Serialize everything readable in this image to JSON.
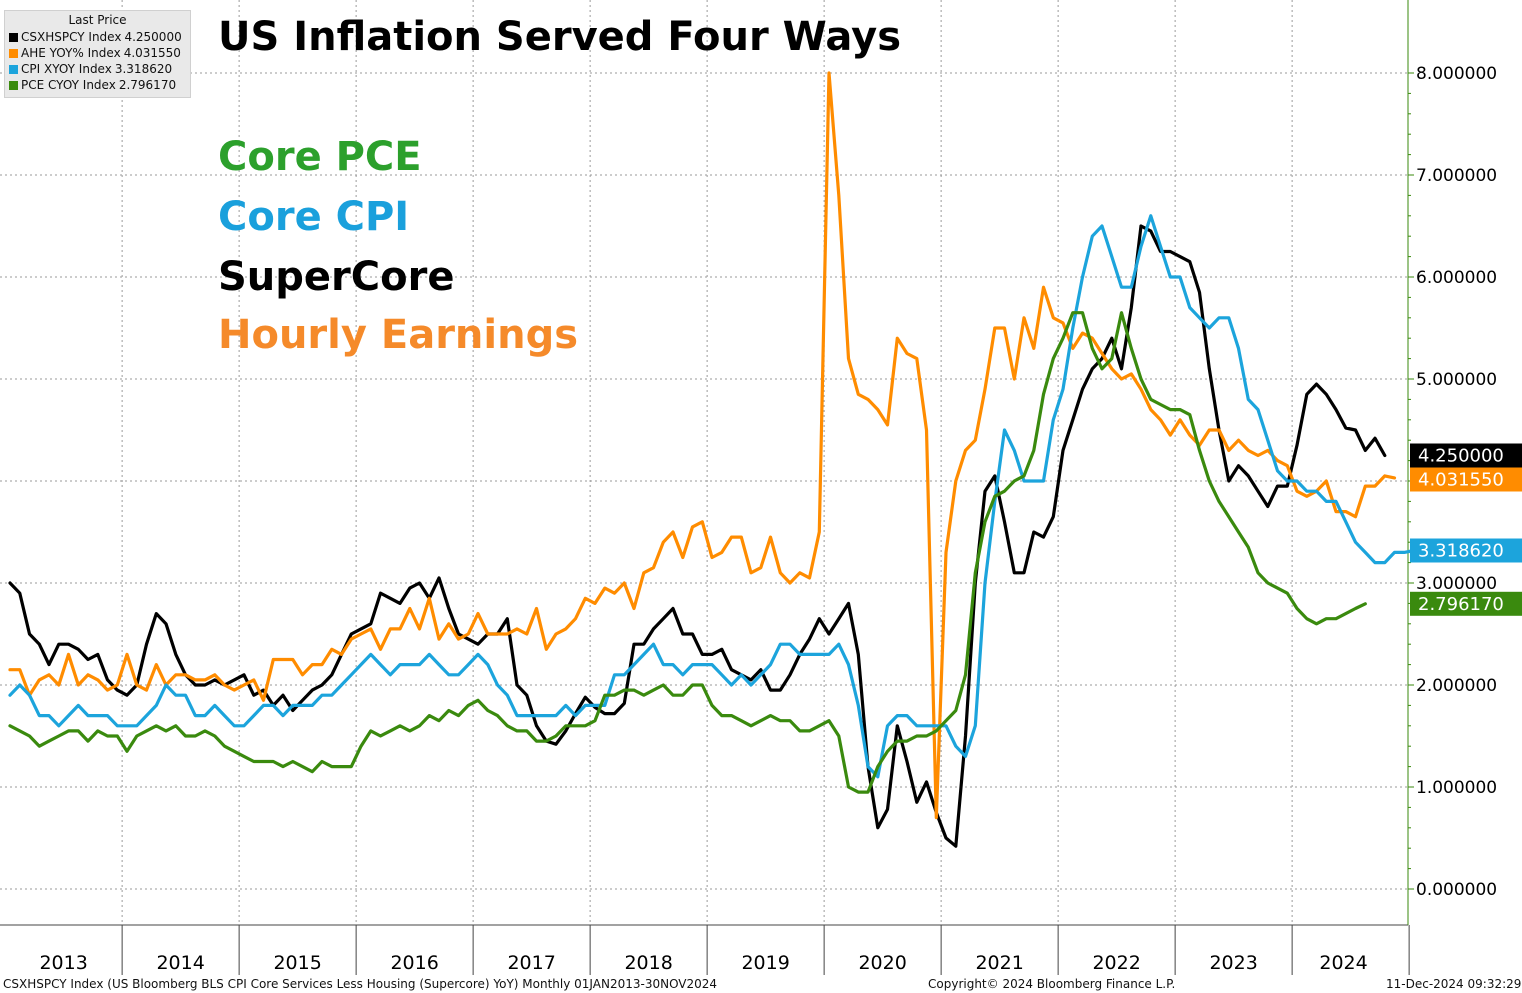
{
  "title": "US Inflation Served Four Ways",
  "annotations": [
    {
      "text": "Core PCE",
      "color": "#2ca02c"
    },
    {
      "text": "Core CPI",
      "color": "#1aa0dc"
    },
    {
      "text": "SuperCore",
      "color": "#000000"
    },
    {
      "text": "Hourly Earnings",
      "color": "#f58a2a"
    }
  ],
  "legend": {
    "header": "Last Price",
    "items": [
      {
        "name": "CSXHSPCY Index",
        "value": "4.250000",
        "color": "#000000"
      },
      {
        "name": "AHE YOY% Index",
        "value": "4.031550",
        "color": "#ff8c00"
      },
      {
        "name": "CPI XYOY Index",
        "value": "3.318620",
        "color": "#1ca4dc"
      },
      {
        "name": "PCE CYOY Index",
        "value": "2.796170",
        "color": "#3a8a0e"
      }
    ]
  },
  "footer": {
    "left": "CSXHSPCY Index (US Bloomberg BLS CPI Core Services Less Housing (Supercore) YoY)  Monthly 01JAN2013-30NOV2024",
    "center": "Copyright© 2024 Bloomberg Finance L.P.",
    "right": "11-Dec-2024 09:32:29"
  },
  "chart_data": {
    "type": "line",
    "x_start": "2013-01",
    "x_end": "2024-11",
    "ylim": [
      -0.1,
      8.7
    ],
    "y_ticks": [
      "0.000000",
      "1.000000",
      "2.000000",
      "3.000000",
      "4.000000",
      "5.000000",
      "6.000000",
      "7.000000",
      "8.000000"
    ],
    "x_tick_labels": [
      "2013",
      "2014",
      "2015",
      "2016",
      "2017",
      "2018",
      "2019",
      "2020",
      "2021",
      "2022",
      "2023",
      "2024"
    ],
    "grid": true,
    "legend_position": "top-left",
    "series": [
      {
        "name": "CSXHSPCY Index",
        "color": "#000000",
        "last_label": "4.250000",
        "values": [
          3.0,
          2.9,
          2.5,
          2.4,
          2.2,
          2.4,
          2.4,
          2.35,
          2.25,
          2.3,
          2.05,
          1.95,
          1.9,
          2.0,
          2.4,
          2.7,
          2.6,
          2.3,
          2.1,
          2.0,
          2.0,
          2.05,
          2.0,
          2.05,
          2.1,
          1.9,
          1.95,
          1.8,
          1.9,
          1.75,
          1.85,
          1.95,
          2.0,
          2.1,
          2.3,
          2.5,
          2.55,
          2.6,
          2.9,
          2.85,
          2.8,
          2.95,
          3.0,
          2.85,
          3.05,
          2.75,
          2.5,
          2.45,
          2.4,
          2.5,
          2.5,
          2.65,
          2.0,
          1.9,
          1.6,
          1.45,
          1.42,
          1.55,
          1.72,
          1.88,
          1.78,
          1.72,
          1.72,
          1.82,
          2.4,
          2.4,
          2.55,
          2.65,
          2.75,
          2.5,
          2.5,
          2.3,
          2.3,
          2.35,
          2.15,
          2.1,
          2.05,
          2.15,
          1.95,
          1.95,
          2.1,
          2.3,
          2.45,
          2.65,
          2.5,
          2.65,
          2.8,
          2.3,
          1.2,
          0.6,
          0.78,
          1.6,
          1.25,
          0.85,
          1.05,
          0.75,
          0.5,
          0.42,
          1.5,
          3.0,
          3.9,
          4.05,
          3.6,
          3.1,
          3.1,
          3.5,
          3.45,
          3.65,
          4.3,
          4.6,
          4.9,
          5.1,
          5.2,
          5.4,
          5.1,
          5.7,
          6.5,
          6.45,
          6.25,
          6.25,
          6.2,
          6.15,
          5.85,
          5.1,
          4.5,
          4.0,
          4.15,
          4.05,
          3.9,
          3.75,
          3.95,
          3.95,
          4.35,
          4.85,
          4.95,
          4.85,
          4.7,
          4.52,
          4.5,
          4.3,
          4.42,
          4.25
        ]
      },
      {
        "name": "AHE YOY% Index",
        "color": "#ff8c00",
        "last_label": "4.031550",
        "values": [
          2.15,
          2.15,
          1.9,
          2.05,
          2.1,
          2.0,
          2.3,
          2.0,
          2.1,
          2.05,
          1.95,
          2.0,
          2.3,
          2.0,
          1.95,
          2.2,
          2.0,
          2.1,
          2.1,
          2.05,
          2.05,
          2.1,
          2.0,
          1.95,
          2.0,
          2.05,
          1.85,
          2.25,
          2.25,
          2.25,
          2.1,
          2.2,
          2.2,
          2.35,
          2.3,
          2.45,
          2.5,
          2.55,
          2.35,
          2.55,
          2.55,
          2.75,
          2.55,
          2.85,
          2.45,
          2.6,
          2.45,
          2.5,
          2.7,
          2.5,
          2.5,
          2.5,
          2.55,
          2.5,
          2.75,
          2.35,
          2.5,
          2.55,
          2.65,
          2.85,
          2.8,
          2.95,
          2.9,
          3.0,
          2.75,
          3.1,
          3.15,
          3.4,
          3.5,
          3.25,
          3.55,
          3.6,
          3.25,
          3.3,
          3.45,
          3.45,
          3.1,
          3.15,
          3.45,
          3.1,
          3.0,
          3.1,
          3.05,
          3.5,
          8.0,
          6.8,
          5.2,
          4.85,
          4.8,
          4.7,
          4.55,
          5.4,
          5.25,
          5.2,
          4.5,
          0.7,
          3.3,
          4.0,
          4.3,
          4.4,
          4.9,
          5.5,
          5.5,
          5.0,
          5.6,
          5.3,
          5.9,
          5.6,
          5.55,
          5.3,
          5.45,
          5.4,
          5.25,
          5.1,
          5.0,
          5.05,
          4.9,
          4.7,
          4.6,
          4.45,
          4.6,
          4.45,
          4.35,
          4.5,
          4.5,
          4.3,
          4.4,
          4.3,
          4.25,
          4.3,
          4.2,
          4.15,
          3.9,
          3.85,
          3.9,
          4.0,
          3.7,
          3.7,
          3.65,
          3.95,
          3.95,
          4.05,
          4.03
        ]
      },
      {
        "name": "CPI XYOY Index",
        "color": "#1ca4dc",
        "last_label": "3.318620",
        "values": [
          1.9,
          2.0,
          1.9,
          1.7,
          1.7,
          1.6,
          1.7,
          1.8,
          1.7,
          1.7,
          1.7,
          1.6,
          1.6,
          1.6,
          1.7,
          1.8,
          2.0,
          1.9,
          1.9,
          1.7,
          1.7,
          1.8,
          1.7,
          1.6,
          1.6,
          1.7,
          1.8,
          1.8,
          1.7,
          1.8,
          1.8,
          1.8,
          1.9,
          1.9,
          2.0,
          2.1,
          2.2,
          2.3,
          2.2,
          2.1,
          2.2,
          2.2,
          2.2,
          2.3,
          2.2,
          2.1,
          2.1,
          2.2,
          2.3,
          2.2,
          2.0,
          1.9,
          1.7,
          1.7,
          1.7,
          1.7,
          1.7,
          1.8,
          1.7,
          1.8,
          1.8,
          1.8,
          2.1,
          2.1,
          2.2,
          2.3,
          2.4,
          2.2,
          2.2,
          2.1,
          2.2,
          2.2,
          2.2,
          2.1,
          2.0,
          2.1,
          2.0,
          2.1,
          2.2,
          2.4,
          2.4,
          2.3,
          2.3,
          2.3,
          2.3,
          2.4,
          2.2,
          1.8,
          1.2,
          1.1,
          1.6,
          1.7,
          1.7,
          1.6,
          1.6,
          1.6,
          1.6,
          1.4,
          1.3,
          1.6,
          3.0,
          3.8,
          4.5,
          4.3,
          4.0,
          4.0,
          4.0,
          4.6,
          4.9,
          5.5,
          6.0,
          6.4,
          6.5,
          6.2,
          5.9,
          5.9,
          6.3,
          6.6,
          6.3,
          6.0,
          6.0,
          5.7,
          5.6,
          5.5,
          5.6,
          5.6,
          5.3,
          4.8,
          4.7,
          4.4,
          4.1,
          4.0,
          4.0,
          3.9,
          3.9,
          3.8,
          3.8,
          3.6,
          3.4,
          3.3,
          3.2,
          3.2,
          3.3,
          3.3,
          3.31862
        ]
      },
      {
        "name": "PCE CYOY Index",
        "color": "#3a8a0e",
        "last_label": "2.796170",
        "values": [
          1.6,
          1.55,
          1.5,
          1.4,
          1.45,
          1.5,
          1.55,
          1.55,
          1.45,
          1.55,
          1.5,
          1.5,
          1.35,
          1.5,
          1.55,
          1.6,
          1.55,
          1.6,
          1.5,
          1.5,
          1.55,
          1.5,
          1.4,
          1.35,
          1.3,
          1.25,
          1.25,
          1.25,
          1.2,
          1.25,
          1.2,
          1.15,
          1.25,
          1.2,
          1.2,
          1.2,
          1.4,
          1.55,
          1.5,
          1.55,
          1.6,
          1.55,
          1.6,
          1.7,
          1.65,
          1.75,
          1.7,
          1.8,
          1.85,
          1.75,
          1.7,
          1.6,
          1.55,
          1.55,
          1.45,
          1.45,
          1.5,
          1.6,
          1.6,
          1.6,
          1.65,
          1.9,
          1.9,
          1.95,
          1.95,
          1.9,
          1.95,
          2.0,
          1.9,
          1.9,
          2.0,
          2.0,
          1.8,
          1.7,
          1.7,
          1.65,
          1.6,
          1.65,
          1.7,
          1.65,
          1.65,
          1.55,
          1.55,
          1.6,
          1.65,
          1.5,
          1.0,
          0.95,
          0.95,
          1.2,
          1.35,
          1.45,
          1.45,
          1.5,
          1.5,
          1.55,
          1.65,
          1.75,
          2.1,
          3.1,
          3.6,
          3.85,
          3.9,
          4.0,
          4.05,
          4.3,
          4.85,
          5.2,
          5.4,
          5.65,
          5.65,
          5.3,
          5.1,
          5.2,
          5.65,
          5.3,
          5.0,
          4.8,
          4.75,
          4.7,
          4.7,
          4.65,
          4.3,
          4.0,
          3.8,
          3.65,
          3.5,
          3.35,
          3.1,
          3.0,
          2.95,
          2.9,
          2.75,
          2.65,
          2.6,
          2.65,
          2.65,
          2.7,
          2.75,
          2.79617
        ]
      }
    ]
  }
}
